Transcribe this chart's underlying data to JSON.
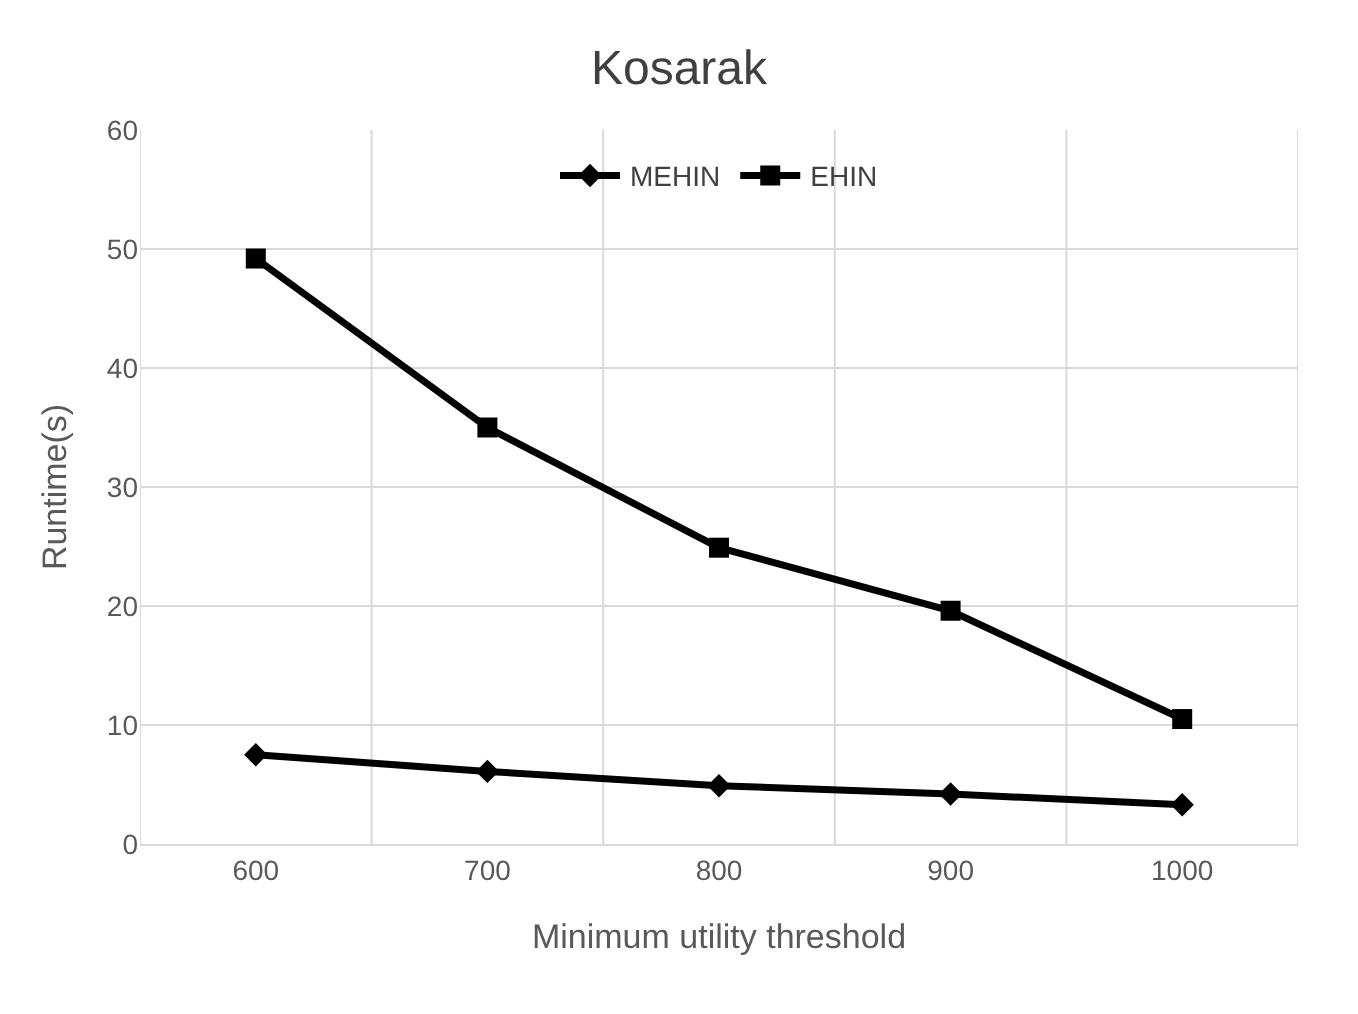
{
  "chart_data": {
    "type": "line",
    "title": "Kosarak",
    "xlabel": "Minimum utility threshold",
    "ylabel": "Runtime(s)",
    "categories": [
      "600",
      "700",
      "800",
      "900",
      "1000"
    ],
    "series": [
      {
        "name": "MEHIN",
        "color": "#000000",
        "marker": "diamond",
        "values": [
          7.5,
          6.1,
          4.9,
          4.2,
          3.3
        ]
      },
      {
        "name": "EHIN",
        "color": "#000000",
        "marker": "square",
        "values": [
          49.2,
          35.0,
          24.9,
          19.6,
          10.5
        ]
      }
    ],
    "ylim": [
      0,
      60
    ],
    "yticks": [
      0,
      10,
      20,
      30,
      40,
      50,
      60
    ],
    "grid": true,
    "legend": "top",
    "line_style": "solid"
  }
}
